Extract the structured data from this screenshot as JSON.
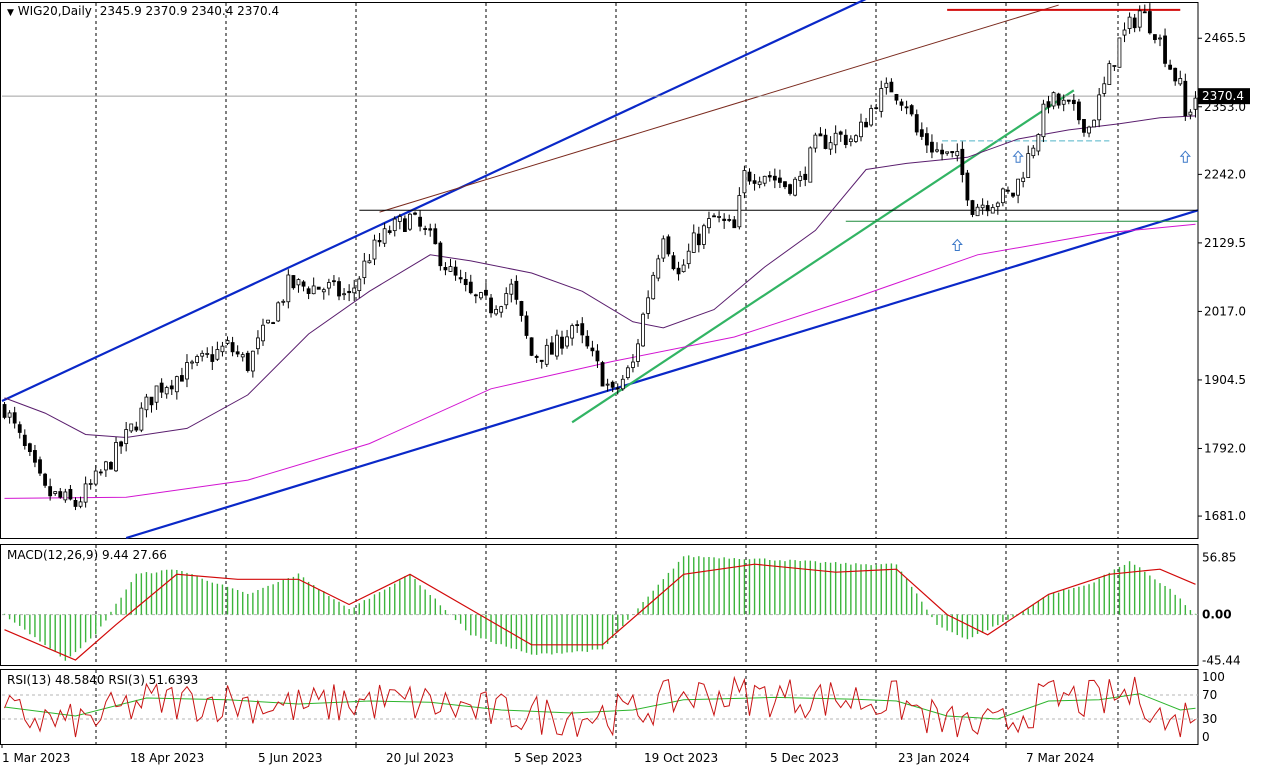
{
  "header": {
    "title": "WIG20,Daily",
    "ohlc": "2345.9 2370.9 2340.4 2370.4"
  },
  "price_label": "2370.4",
  "macd_label": "MACD(12,26,9) 9.44 27.66",
  "rsi_label": "RSI(13) 48.5840  RSI(3) 51.6393",
  "colors": {
    "bull": "#2db52d",
    "bear": "#c81414",
    "channel": "#0a28c8",
    "trend": "#32b464",
    "ma_short": "#5a1e6e",
    "ma_long": "#d214d2",
    "resistance": "#d20a0a",
    "macd_hist": "#3cb43c",
    "macd_signal": "#d20a0a",
    "rsi_fast": "#c81414",
    "rsi_slow": "#2db52d"
  },
  "chart_data": [
    {
      "type": "candlestick",
      "title": "WIG20,Daily",
      "yticks": [
        "2465.5",
        "2353.0",
        "2242.0",
        "2129.5",
        "2017.0",
        "1904.5",
        "1792.0",
        "1681.0"
      ],
      "xticks": [
        "1 Mar 2023",
        "18 Apr 2023",
        "5 Jun 2023",
        "20 Jul 2023",
        "5 Sep 2023",
        "19 Oct 2023",
        "5 Dec 2023",
        "23 Jan 2024",
        "7 Mar 2024"
      ],
      "ylim": [
        1645,
        2525
      ],
      "last_price": 2370.4,
      "resistance_level": 2512,
      "support_levels": [
        2183,
        2165,
        2297
      ],
      "anchors": [
        {
          "x": 0,
          "y": 1860
        },
        {
          "x": 8,
          "y": 1720
        },
        {
          "x": 14,
          "y": 1700
        },
        {
          "x": 20,
          "y": 1760
        },
        {
          "x": 24,
          "y": 1810
        },
        {
          "x": 30,
          "y": 1890
        },
        {
          "x": 38,
          "y": 1930
        },
        {
          "x": 44,
          "y": 1960
        },
        {
          "x": 48,
          "y": 1930
        },
        {
          "x": 56,
          "y": 2060
        },
        {
          "x": 64,
          "y": 2055
        },
        {
          "x": 68,
          "y": 2040
        },
        {
          "x": 72,
          "y": 2110
        },
        {
          "x": 76,
          "y": 2150
        },
        {
          "x": 80,
          "y": 2170
        },
        {
          "x": 84,
          "y": 2135
        },
        {
          "x": 88,
          "y": 2080
        },
        {
          "x": 92,
          "y": 2040
        },
        {
          "x": 96,
          "y": 2025
        },
        {
          "x": 100,
          "y": 2055
        },
        {
          "x": 104,
          "y": 1945
        },
        {
          "x": 108,
          "y": 1950
        },
        {
          "x": 112,
          "y": 1995
        },
        {
          "x": 116,
          "y": 1940
        },
        {
          "x": 120,
          "y": 1880
        },
        {
          "x": 124,
          "y": 1930
        },
        {
          "x": 126,
          "y": 2010
        },
        {
          "x": 130,
          "y": 2150
        },
        {
          "x": 133,
          "y": 2075
        },
        {
          "x": 136,
          "y": 2130
        },
        {
          "x": 140,
          "y": 2170
        },
        {
          "x": 144,
          "y": 2150
        },
        {
          "x": 146,
          "y": 2240
        },
        {
          "x": 150,
          "y": 2245
        },
        {
          "x": 154,
          "y": 2225
        },
        {
          "x": 157,
          "y": 2230
        },
        {
          "x": 160,
          "y": 2290
        },
        {
          "x": 164,
          "y": 2305
        },
        {
          "x": 168,
          "y": 2300
        },
        {
          "x": 172,
          "y": 2365
        },
        {
          "x": 175,
          "y": 2385
        },
        {
          "x": 178,
          "y": 2360
        },
        {
          "x": 180,
          "y": 2310
        },
        {
          "x": 184,
          "y": 2280
        },
        {
          "x": 188,
          "y": 2265
        },
        {
          "x": 191,
          "y": 2190
        },
        {
          "x": 195,
          "y": 2200
        },
        {
          "x": 199,
          "y": 2210
        },
        {
          "x": 202,
          "y": 2270
        },
        {
          "x": 206,
          "y": 2365
        },
        {
          "x": 210,
          "y": 2350
        },
        {
          "x": 214,
          "y": 2320
        },
        {
          "x": 217,
          "y": 2385
        },
        {
          "x": 220,
          "y": 2460
        },
        {
          "x": 224,
          "y": 2510
        },
        {
          "x": 227,
          "y": 2480
        },
        {
          "x": 230,
          "y": 2420
        },
        {
          "x": 232,
          "y": 2385
        },
        {
          "x": 233,
          "y": 2335
        },
        {
          "x": 235,
          "y": 2370
        }
      ],
      "ma_short": [
        {
          "x": 0,
          "y": 1875
        },
        {
          "x": 8,
          "y": 1850
        },
        {
          "x": 16,
          "y": 1815
        },
        {
          "x": 24,
          "y": 1810
        },
        {
          "x": 36,
          "y": 1825
        },
        {
          "x": 48,
          "y": 1880
        },
        {
          "x": 60,
          "y": 1980
        },
        {
          "x": 72,
          "y": 2050
        },
        {
          "x": 84,
          "y": 2110
        },
        {
          "x": 92,
          "y": 2100
        },
        {
          "x": 104,
          "y": 2080
        },
        {
          "x": 114,
          "y": 2050
        },
        {
          "x": 124,
          "y": 2000
        },
        {
          "x": 130,
          "y": 1990
        },
        {
          "x": 140,
          "y": 2020
        },
        {
          "x": 150,
          "y": 2090
        },
        {
          "x": 160,
          "y": 2150
        },
        {
          "x": 170,
          "y": 2250
        },
        {
          "x": 178,
          "y": 2260
        },
        {
          "x": 190,
          "y": 2270
        },
        {
          "x": 200,
          "y": 2300
        },
        {
          "x": 210,
          "y": 2315
        },
        {
          "x": 220,
          "y": 2325
        },
        {
          "x": 228,
          "y": 2335
        },
        {
          "x": 235,
          "y": 2338
        }
      ],
      "ma_long": [
        {
          "x": 0,
          "y": 1710
        },
        {
          "x": 24,
          "y": 1712
        },
        {
          "x": 48,
          "y": 1740
        },
        {
          "x": 72,
          "y": 1800
        },
        {
          "x": 96,
          "y": 1890
        },
        {
          "x": 120,
          "y": 1935
        },
        {
          "x": 144,
          "y": 1975
        },
        {
          "x": 168,
          "y": 2040
        },
        {
          "x": 192,
          "y": 2110
        },
        {
          "x": 216,
          "y": 2145
        },
        {
          "x": 235,
          "y": 2160
        }
      ]
    },
    {
      "type": "bar",
      "title": "MACD(12,26,9) 9.44 27.66",
      "yticks": [
        "56.85",
        "0.00",
        "-45.44"
      ],
      "ylim": [
        -50,
        70
      ],
      "histogram_anchors": [
        {
          "x": 0,
          "y": 0
        },
        {
          "x": 12,
          "y": -45
        },
        {
          "x": 18,
          "y": -20
        },
        {
          "x": 26,
          "y": 40
        },
        {
          "x": 34,
          "y": 45
        },
        {
          "x": 48,
          "y": 20
        },
        {
          "x": 58,
          "y": 40
        },
        {
          "x": 68,
          "y": 5
        },
        {
          "x": 80,
          "y": 40
        },
        {
          "x": 92,
          "y": -20
        },
        {
          "x": 104,
          "y": -40
        },
        {
          "x": 118,
          "y": -35
        },
        {
          "x": 124,
          "y": 0
        },
        {
          "x": 134,
          "y": 58
        },
        {
          "x": 150,
          "y": 55
        },
        {
          "x": 168,
          "y": 50
        },
        {
          "x": 176,
          "y": 50
        },
        {
          "x": 184,
          "y": -10
        },
        {
          "x": 190,
          "y": -25
        },
        {
          "x": 200,
          "y": 0
        },
        {
          "x": 206,
          "y": 20
        },
        {
          "x": 214,
          "y": 30
        },
        {
          "x": 222,
          "y": 53
        },
        {
          "x": 230,
          "y": 25
        },
        {
          "x": 235,
          "y": 0
        }
      ],
      "signal_anchors": [
        {
          "x": 0,
          "y": -15
        },
        {
          "x": 14,
          "y": -45
        },
        {
          "x": 22,
          "y": -10
        },
        {
          "x": 34,
          "y": 40
        },
        {
          "x": 46,
          "y": 35
        },
        {
          "x": 58,
          "y": 35
        },
        {
          "x": 68,
          "y": 10
        },
        {
          "x": 80,
          "y": 40
        },
        {
          "x": 92,
          "y": 5
        },
        {
          "x": 104,
          "y": -30
        },
        {
          "x": 118,
          "y": -30
        },
        {
          "x": 126,
          "y": 5
        },
        {
          "x": 134,
          "y": 40
        },
        {
          "x": 148,
          "y": 50
        },
        {
          "x": 164,
          "y": 42
        },
        {
          "x": 176,
          "y": 45
        },
        {
          "x": 186,
          "y": 0
        },
        {
          "x": 194,
          "y": -20
        },
        {
          "x": 206,
          "y": 20
        },
        {
          "x": 218,
          "y": 40
        },
        {
          "x": 228,
          "y": 45
        },
        {
          "x": 235,
          "y": 30
        }
      ]
    },
    {
      "type": "line",
      "title": "RSI(13) 48.5840  RSI(3) 51.6393",
      "yticks": [
        "100",
        "70",
        "30",
        "0"
      ],
      "ylim": [
        0,
        100
      ],
      "levels": [
        30,
        70
      ],
      "rsi_slow_anchors": [
        {
          "x": 0,
          "y": 50
        },
        {
          "x": 14,
          "y": 35
        },
        {
          "x": 28,
          "y": 65
        },
        {
          "x": 44,
          "y": 62
        },
        {
          "x": 58,
          "y": 55
        },
        {
          "x": 72,
          "y": 60
        },
        {
          "x": 84,
          "y": 58
        },
        {
          "x": 98,
          "y": 45
        },
        {
          "x": 112,
          "y": 40
        },
        {
          "x": 124,
          "y": 45
        },
        {
          "x": 134,
          "y": 62
        },
        {
          "x": 152,
          "y": 66
        },
        {
          "x": 168,
          "y": 63
        },
        {
          "x": 176,
          "y": 60
        },
        {
          "x": 186,
          "y": 35
        },
        {
          "x": 196,
          "y": 30
        },
        {
          "x": 206,
          "y": 60
        },
        {
          "x": 216,
          "y": 62
        },
        {
          "x": 224,
          "y": 72
        },
        {
          "x": 232,
          "y": 45
        },
        {
          "x": 235,
          "y": 48
        }
      ],
      "rsi_fast_center": [
        {
          "x": 0,
          "y": 40
        },
        {
          "x": 14,
          "y": 20
        },
        {
          "x": 28,
          "y": 60
        },
        {
          "x": 44,
          "y": 60
        },
        {
          "x": 58,
          "y": 50
        },
        {
          "x": 72,
          "y": 60
        },
        {
          "x": 84,
          "y": 55
        },
        {
          "x": 98,
          "y": 40
        },
        {
          "x": 112,
          "y": 35
        },
        {
          "x": 124,
          "y": 40
        },
        {
          "x": 134,
          "y": 70
        },
        {
          "x": 152,
          "y": 68
        },
        {
          "x": 168,
          "y": 62
        },
        {
          "x": 176,
          "y": 60
        },
        {
          "x": 186,
          "y": 20
        },
        {
          "x": 196,
          "y": 15
        },
        {
          "x": 206,
          "y": 65
        },
        {
          "x": 216,
          "y": 60
        },
        {
          "x": 224,
          "y": 75
        },
        {
          "x": 230,
          "y": 15
        },
        {
          "x": 235,
          "y": 52
        }
      ]
    }
  ]
}
